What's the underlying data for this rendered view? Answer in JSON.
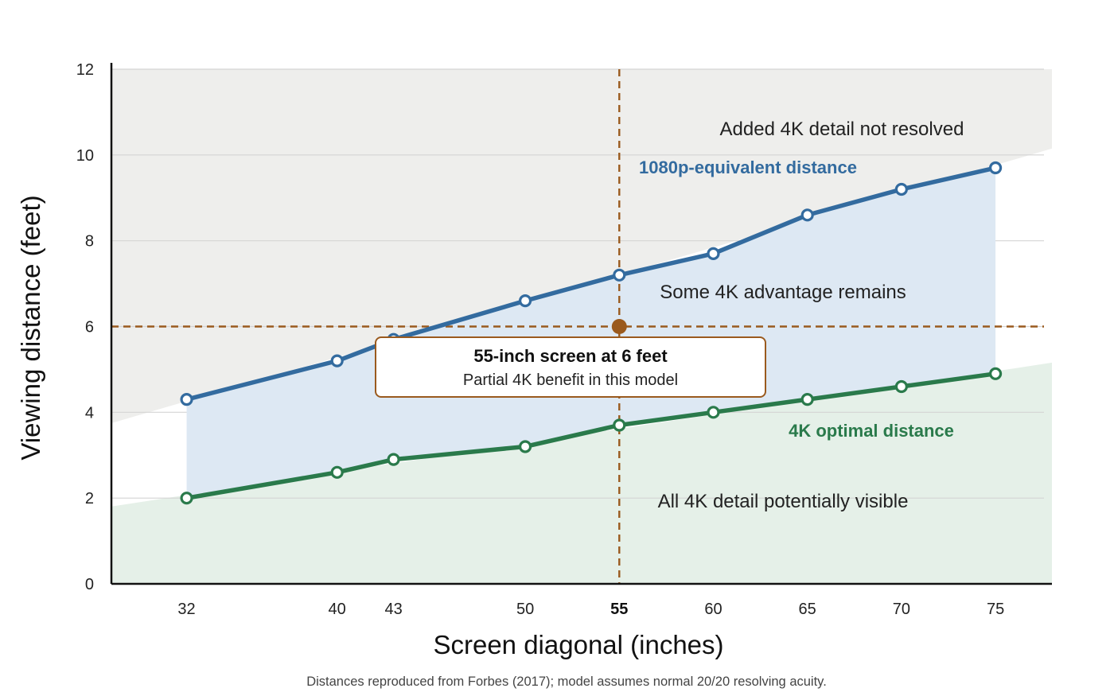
{
  "chart_data": {
    "type": "line",
    "xlabel": "Screen diagonal (inches)",
    "ylabel": "Viewing distance (feet)",
    "xlim": [
      28,
      78
    ],
    "ylim": [
      0,
      12
    ],
    "y_ticks": [
      0,
      2,
      4,
      6,
      8,
      10,
      12
    ],
    "x": [
      32,
      40,
      43,
      50,
      55,
      60,
      65,
      70,
      75
    ],
    "x_tick_labels": [
      "32",
      "40",
      "43",
      "50",
      "55",
      "60",
      "65",
      "70",
      "75"
    ],
    "highlight_x_tick": "55",
    "grid": "horizontal",
    "series": [
      {
        "name": "1080p-equivalent distance",
        "color": "#336b9f",
        "values": [
          4.3,
          5.2,
          5.7,
          6.6,
          7.2,
          7.7,
          8.6,
          9.2,
          9.7
        ]
      },
      {
        "name": "4K optimal distance",
        "color": "#2a7a4b",
        "values": [
          2.0,
          2.6,
          2.9,
          3.2,
          3.7,
          4.0,
          4.3,
          4.6,
          4.9
        ]
      }
    ],
    "regions": [
      {
        "label": "Added 4K detail not resolved",
        "color": "#eeeeec"
      },
      {
        "label": "Some 4K advantage remains",
        "color": "#dde8f3"
      },
      {
        "label": "All 4K detail potentially visible",
        "color": "#e5f0e8"
      }
    ],
    "reference_point": {
      "x": 55,
      "y": 6,
      "color": "#9a5a1e"
    },
    "callout": {
      "title": "55-inch screen at 6 feet",
      "subtitle": "Partial 4K benefit in this model"
    },
    "footnote": "Distances reproduced from Forbes (2017); model assumes normal 20/20 resolving acuity."
  }
}
